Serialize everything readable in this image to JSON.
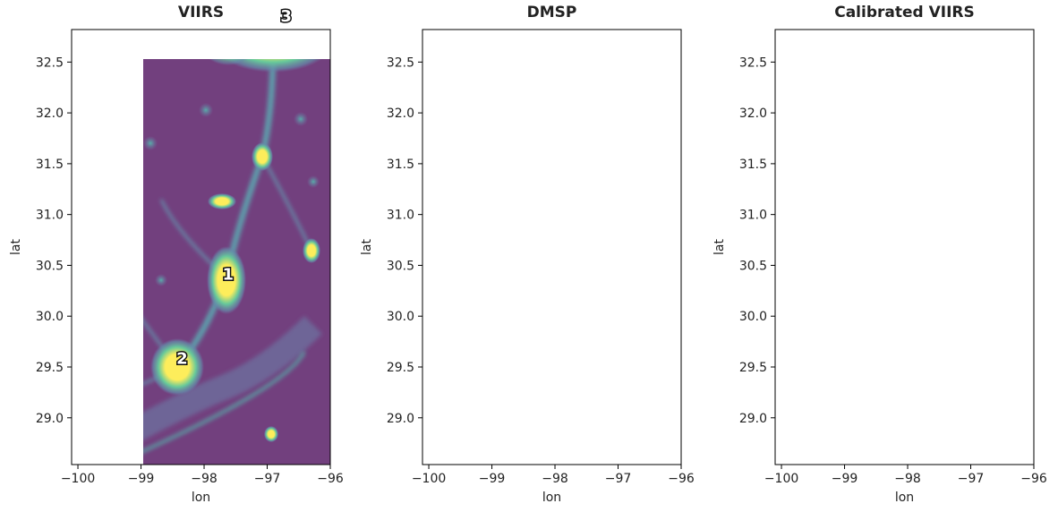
{
  "chart_data": [
    {
      "type": "heatmap",
      "title": "VIIRS",
      "xlabel": "lon",
      "ylabel": "lat",
      "xlim": [
        -100.1,
        -96
      ],
      "ylim": [
        28.54,
        32.82
      ],
      "xticks": [
        {
          "value": -100,
          "label": "−100"
        },
        {
          "value": -99,
          "label": "−99"
        },
        {
          "value": -98,
          "label": "−98"
        },
        {
          "value": -97,
          "label": "−97"
        },
        {
          "value": -96,
          "label": "−96"
        }
      ],
      "yticks": [
        {
          "value": 29,
          "label": "29.0"
        },
        {
          "value": 29.5,
          "label": "29.5"
        },
        {
          "value": 30,
          "label": "30.0"
        },
        {
          "value": 30.5,
          "label": "30.5"
        },
        {
          "value": 31,
          "label": "31.0"
        },
        {
          "value": 31.5,
          "label": "31.5"
        },
        {
          "value": 32,
          "label": "32.0"
        },
        {
          "value": 32.5,
          "label": "32.5"
        }
      ],
      "annotations": [
        {
          "text": "1",
          "x": -97.62,
          "y": 30.36
        },
        {
          "text": "2",
          "x": -98.35,
          "y": 29.53
        },
        {
          "text": "3",
          "x": -96.7,
          "y": 32.9
        }
      ]
    },
    {
      "type": "heatmap",
      "title": "DMSP",
      "xlabel": "lon",
      "ylabel": "lat",
      "xlim": [
        -100.1,
        -96
      ],
      "ylim": [
        28.54,
        32.82
      ],
      "xticks": [
        {
          "value": -100,
          "label": "−100"
        },
        {
          "value": -99,
          "label": "−99"
        },
        {
          "value": -98,
          "label": "−98"
        },
        {
          "value": -97,
          "label": "−97"
        },
        {
          "value": -96,
          "label": "−96"
        }
      ],
      "yticks": [
        {
          "value": 29,
          "label": "29.0"
        },
        {
          "value": 29.5,
          "label": "29.5"
        },
        {
          "value": 30,
          "label": "30.0"
        },
        {
          "value": 30.5,
          "label": "30.5"
        },
        {
          "value": 31,
          "label": "31.0"
        },
        {
          "value": 31.5,
          "label": "31.5"
        },
        {
          "value": 32,
          "label": "32.0"
        },
        {
          "value": 32.5,
          "label": "32.5"
        }
      ]
    },
    {
      "type": "heatmap",
      "title": "Calibrated VIIRS",
      "xlabel": "lon",
      "ylabel": "lat",
      "xlim": [
        -100.1,
        -96
      ],
      "ylim": [
        28.54,
        32.82
      ],
      "xticks": [
        {
          "value": -100,
          "label": "−100"
        },
        {
          "value": -99,
          "label": "−99"
        },
        {
          "value": -98,
          "label": "−98"
        },
        {
          "value": -97,
          "label": "−97"
        },
        {
          "value": -96,
          "label": "−96"
        }
      ],
      "yticks": [
        {
          "value": 29,
          "label": "29.0"
        },
        {
          "value": 29.5,
          "label": "29.5"
        },
        {
          "value": 30,
          "label": "30.0"
        },
        {
          "value": 30.5,
          "label": "30.5"
        },
        {
          "value": 31,
          "label": "31.0"
        },
        {
          "value": 31.5,
          "label": "31.5"
        },
        {
          "value": 32,
          "label": "32.0"
        },
        {
          "value": 32.5,
          "label": "32.5"
        }
      ]
    }
  ]
}
